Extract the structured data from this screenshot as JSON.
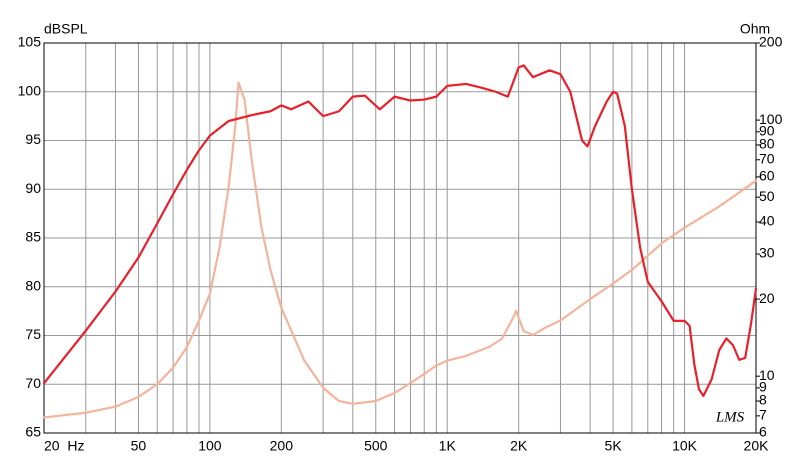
{
  "chart_data": {
    "type": "line",
    "y_label": "dBSPL",
    "y2_label": "Ohm",
    "watermark": "LMS",
    "xscale": "log",
    "y2scale": "log",
    "grid": true,
    "xlim": [
      20,
      20000
    ],
    "ylim": [
      65,
      105
    ],
    "y2lim": [
      6,
      200
    ],
    "xticks": [
      {
        "value": 20,
        "label": "20  Hz"
      },
      50,
      100,
      200,
      500,
      {
        "value": 1000,
        "label": "1K"
      },
      {
        "value": 2000,
        "label": "2K"
      },
      {
        "value": 5000,
        "label": "5K"
      },
      {
        "value": 10000,
        "label": "10K"
      },
      {
        "value": 20000,
        "label": "20K"
      }
    ],
    "minor_xticks": [
      30,
      40,
      60,
      70,
      80,
      90,
      300,
      400,
      600,
      700,
      800,
      900,
      3000,
      4000,
      6000,
      7000,
      8000,
      9000
    ],
    "yticks": [
      65,
      70,
      75,
      80,
      85,
      90,
      95,
      100,
      105
    ],
    "y2ticks": [
      6,
      7,
      8,
      9,
      10,
      20,
      30,
      40,
      50,
      60,
      70,
      80,
      90,
      100,
      200
    ],
    "series": [
      {
        "color": "#e8202a",
        "x": [
          20,
          30,
          40,
          50,
          60,
          70,
          80,
          90,
          100,
          120,
          150,
          180,
          200,
          220,
          260,
          300,
          350,
          400,
          450,
          520,
          600,
          700,
          800,
          900,
          1000,
          1200,
          1400,
          1600,
          1800,
          2000,
          2100,
          2300,
          2700,
          3000,
          3300,
          3700,
          3900,
          4200,
          4700,
          5000,
          5200,
          5600,
          6000,
          6500,
          7000,
          8000,
          9000,
          10000,
          10500,
          11000,
          11500,
          12000,
          13000,
          14000,
          15000,
          16000,
          17000,
          18000,
          19000,
          20000
        ],
        "values": [
          70.1,
          75.5,
          79.5,
          83,
          86.5,
          89.5,
          92,
          94,
          95.5,
          97,
          97.6,
          98,
          98.6,
          98.2,
          99,
          97.5,
          98,
          99.5,
          99.6,
          98.2,
          99.5,
          99.1,
          99.2,
          99.5,
          100.6,
          100.8,
          100.4,
          100,
          99.5,
          102.5,
          102.7,
          101.5,
          102.2,
          101.8,
          100,
          95,
          94.4,
          96.5,
          99,
          100,
          99.8,
          96.5,
          90,
          84,
          80.5,
          78.5,
          76.5,
          76.5,
          76,
          72,
          69.5,
          68.8,
          70.5,
          73.5,
          74.7,
          74,
          72.5,
          72.7,
          76,
          79.8
        ]
      },
      {
        "color": "#f4b49c",
        "axis": "y2",
        "x": [
          20,
          30,
          40,
          50,
          60,
          70,
          80,
          90,
          100,
          110,
          120,
          128,
          132,
          140,
          150,
          165,
          180,
          200,
          250,
          300,
          350,
          400,
          500,
          600,
          700,
          800,
          900,
          1000,
          1200,
          1500,
          1700,
          1900,
          1950,
          2100,
          2300,
          2600,
          3000,
          4000,
          5000,
          6000,
          8000,
          10000,
          14000,
          20000
        ],
        "values": [
          6.9,
          7.2,
          7.6,
          8.3,
          9.3,
          10.8,
          13,
          16.5,
          21,
          32,
          55,
          95,
          140,
          120,
          70,
          38,
          26,
          18.5,
          11.5,
          9,
          8,
          7.8,
          8,
          8.6,
          9.4,
          10.2,
          11,
          11.5,
          12,
          13,
          14,
          17,
          18,
          15,
          14.5,
          15.5,
          16.5,
          20,
          23,
          26,
          33,
          38,
          46,
          58
        ]
      }
    ]
  }
}
